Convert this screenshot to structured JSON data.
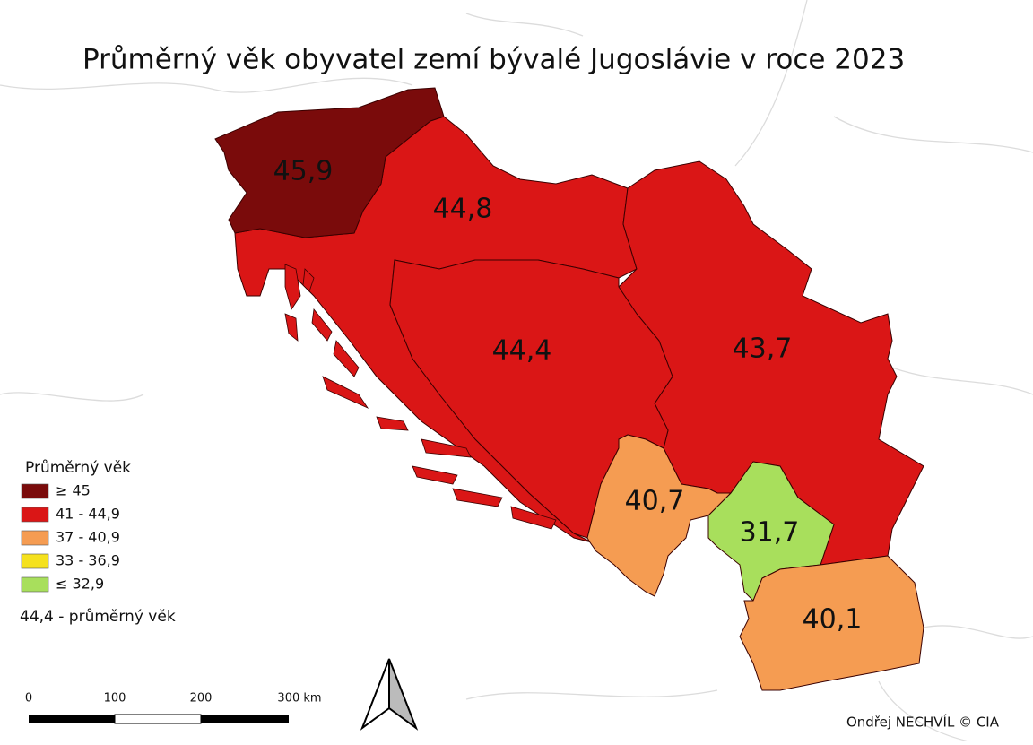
{
  "title": "Průměrný věk obyvatel zemí bývalé Jugoslávie v roce 2023",
  "regions": [
    {
      "label": "45,9",
      "color": "#7a0b0b"
    },
    {
      "label": "44,8",
      "color": "#da1616"
    },
    {
      "label": "44,4",
      "color": "#da1616"
    },
    {
      "label": "43,7",
      "color": "#da1616"
    },
    {
      "label": "40,7",
      "color": "#f59c52"
    },
    {
      "label": "31,7",
      "color": "#a8df5c"
    },
    {
      "label": "40,1",
      "color": "#f59c52"
    }
  ],
  "legend": {
    "title": "Průměrný věk",
    "items": [
      {
        "label": "≥ 45",
        "color": "#7a0b0b"
      },
      {
        "label": "41 - 44,9",
        "color": "#da1616"
      },
      {
        "label": "37 - 40,9",
        "color": "#f59c52"
      },
      {
        "label": "33 - 36,9",
        "color": "#f5e11e"
      },
      {
        "label": "≤ 32,9",
        "color": "#a8df5c"
      }
    ],
    "note": "44,4 - průměrný věk"
  },
  "scale": {
    "labels": [
      "0",
      "100",
      "200",
      "300 km"
    ]
  },
  "credit": "Ondřej NECHVÍL © CIA"
}
